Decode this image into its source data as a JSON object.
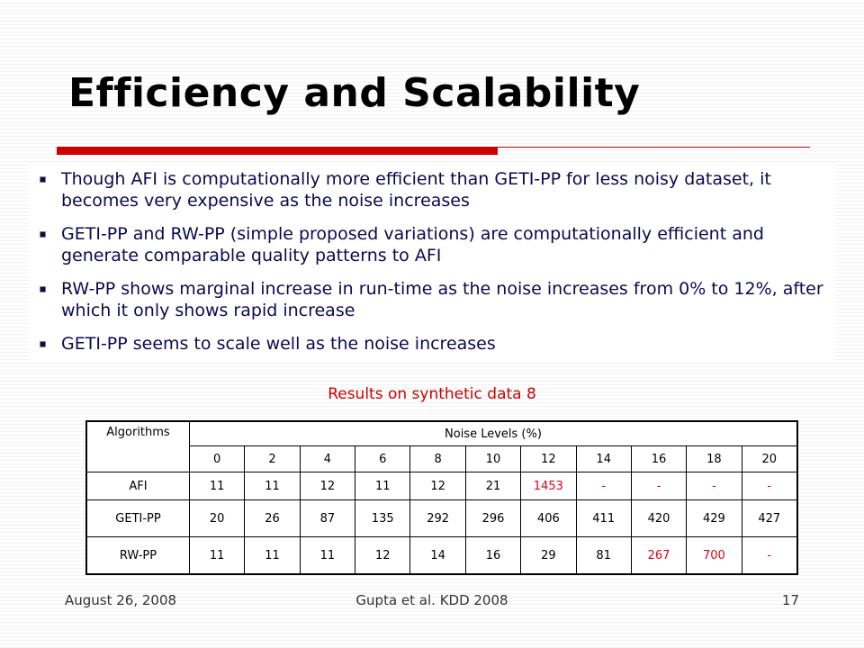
{
  "title": "Efficiency and Scalability",
  "bullets": [
    "Though AFI is computationally more efficient than GETI-PP for less noisy dataset, it becomes very expensive as the noise increases",
    "GETI-PP and RW-PP (simple proposed variations) are computationally efficient and generate comparable quality patterns to AFI",
    "RW-PP shows marginal increase in run-time as the noise increases from 0% to 12%, after which it only shows rapid increase",
    "GETI-PP seems to scale well as the noise increases"
  ],
  "caption": "Results on synthetic data 8",
  "table": {
    "header": [
      "Algorithms",
      "Noise Levels (%)"
    ],
    "noise_levels": [
      "0",
      "2",
      "4",
      "6",
      "8",
      "10",
      "12",
      "14",
      "16",
      "18",
      "20"
    ],
    "rows": [
      {
        "label": "AFI",
        "cells": [
          "11",
          "11",
          "12",
          "11",
          "12",
          "21",
          "1453",
          "-",
          "-",
          "-",
          "-"
        ],
        "colors": [
          "#000000",
          "#000000",
          "#000000",
          "#000000",
          "#000000",
          "#000000",
          "#e0001b",
          "#e0001b",
          "#e0001b",
          "#e0001b",
          "#e0001b"
        ]
      },
      {
        "label": "GETI-PP",
        "cells": [
          "20",
          "26",
          "87",
          "135",
          "292",
          "296",
          "406",
          "411",
          "420",
          "429",
          "427"
        ],
        "colors": [
          "#000000",
          "#000000",
          "#000000",
          "#000000",
          "#000000",
          "#000000",
          "#000000",
          "#000000",
          "#000000",
          "#000000",
          "#000000"
        ]
      },
      {
        "label": "RW-PP",
        "cells": [
          "11",
          "11",
          "11",
          "12",
          "14",
          "16",
          "29",
          "81",
          "267",
          "700",
          "-"
        ],
        "colors": [
          "#000000",
          "#000000",
          "#000000",
          "#000000",
          "#000000",
          "#000000",
          "#000000",
          "#000000",
          "#e0001b",
          "#e0001b",
          "#e0001b"
        ]
      }
    ]
  },
  "footer": {
    "date": "August 26, 2008",
    "citation": "Gupta et al. KDD 2008",
    "page": "17"
  }
}
